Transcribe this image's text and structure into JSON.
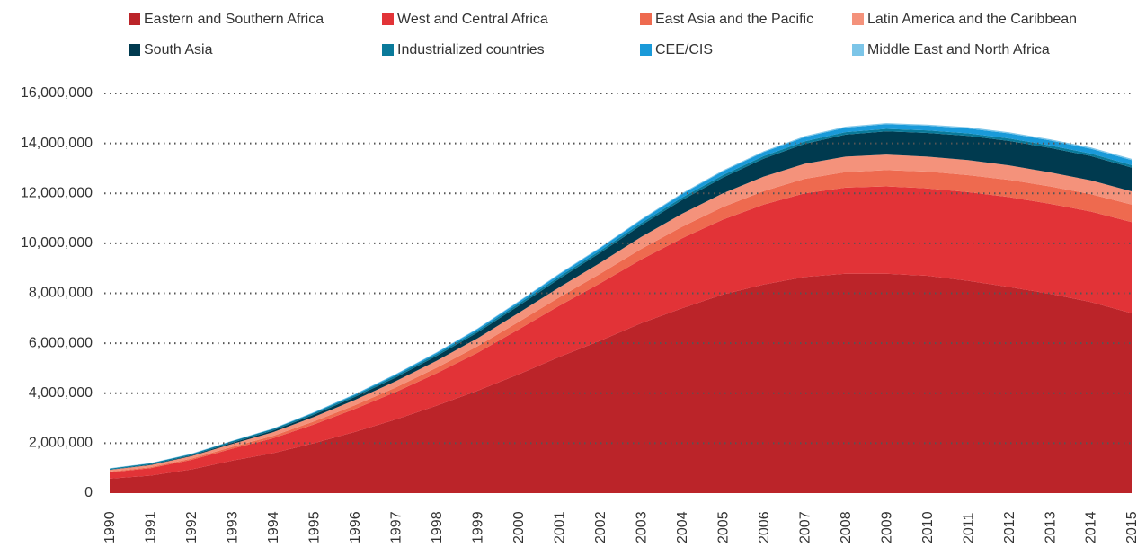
{
  "chart_data": {
    "type": "stacked_area",
    "x": [
      1990,
      1991,
      1992,
      1993,
      1994,
      1995,
      1996,
      1997,
      1998,
      1999,
      2000,
      2001,
      2002,
      2003,
      2004,
      2005,
      2006,
      2007,
      2008,
      2009,
      2010,
      2011,
      2012,
      2013,
      2014,
      2015
    ],
    "ylim": [
      0,
      16000000
    ],
    "yticks": [
      0,
      {
        "value": 2000000,
        "label": "2,000,000"
      },
      {
        "value": 4000000,
        "label": "4,000,000"
      },
      {
        "value": 6000000,
        "label": "6,000,000"
      },
      {
        "value": 8000000,
        "label": "8,000,000"
      },
      {
        "value": 10000000,
        "label": "10,000,000"
      },
      {
        "value": 12000000,
        "label": "12,000,000"
      },
      {
        "value": 14000000,
        "label": "14,000,000"
      },
      {
        "value": 16000000,
        "label": "16,000,000"
      }
    ],
    "grid": true,
    "legend": "top",
    "series": [
      {
        "name": "Eastern and Southern Africa",
        "color": "#bb2429",
        "values": [
          580000,
          700000,
          950000,
          1300000,
          1600000,
          2000000,
          2450000,
          2950000,
          3500000,
          4100000,
          4750000,
          5450000,
          6100000,
          6800000,
          7400000,
          7950000,
          8350000,
          8650000,
          8780000,
          8780000,
          8700000,
          8500000,
          8250000,
          7980000,
          7650000,
          7200000
        ]
      },
      {
        "name": "West and Central Africa",
        "color": "#e23337",
        "values": [
          250000,
          300000,
          380000,
          480000,
          600000,
          750000,
          920000,
          1100000,
          1300000,
          1520000,
          1800000,
          2050000,
          2300000,
          2550000,
          2800000,
          3000000,
          3200000,
          3350000,
          3450000,
          3500000,
          3500000,
          3550000,
          3600000,
          3600000,
          3620000,
          3650000
        ]
      },
      {
        "name": "East Asia and the Pacific",
        "color": "#ee6a4f",
        "values": [
          30000,
          40000,
          50000,
          70000,
          90000,
          120000,
          150000,
          180000,
          220000,
          260000,
          300000,
          340000,
          380000,
          420000,
          460000,
          500000,
          540000,
          580000,
          620000,
          650000,
          670000,
          680000,
          690000,
          700000,
          700000,
          700000
        ]
      },
      {
        "name": "Latin America and the Caribbean",
        "color": "#f4927b",
        "values": [
          70000,
          80000,
          100000,
          120000,
          150000,
          180000,
          210000,
          250000,
          280000,
          320000,
          360000,
          400000,
          440000,
          480000,
          520000,
          550000,
          580000,
          600000,
          620000,
          620000,
          600000,
          600000,
          580000,
          560000,
          550000,
          530000
        ]
      },
      {
        "name": "South Asia",
        "color": "#003a4f",
        "values": [
          10000,
          20000,
          30000,
          50000,
          70000,
          90000,
          120000,
          150000,
          190000,
          230000,
          280000,
          340000,
          400000,
          470000,
          550000,
          630000,
          720000,
          800000,
          880000,
          930000,
          950000,
          970000,
          980000,
          980000,
          970000,
          950000
        ]
      },
      {
        "name": "Industrialized countries",
        "color": "#0a7a9a",
        "values": [
          40000,
          50000,
          50000,
          60000,
          60000,
          70000,
          70000,
          80000,
          80000,
          80000,
          90000,
          90000,
          90000,
          90000,
          100000,
          100000,
          100000,
          100000,
          100000,
          100000,
          100000,
          100000,
          100000,
          100000,
          100000,
          100000
        ]
      },
      {
        "name": "CEE/CIS",
        "color": "#1a9ad9",
        "values": [
          5000,
          5000,
          10000,
          10000,
          10000,
          20000,
          30000,
          40000,
          50000,
          60000,
          70000,
          90000,
          100000,
          120000,
          140000,
          150000,
          160000,
          170000,
          180000,
          190000,
          190000,
          200000,
          200000,
          200000,
          200000,
          200000
        ]
      },
      {
        "name": "Middle East and North Africa",
        "color": "#7cc5e8",
        "values": [
          10000,
          10000,
          10000,
          10000,
          15000,
          15000,
          20000,
          20000,
          20000,
          25000,
          25000,
          30000,
          30000,
          30000,
          35000,
          35000,
          35000,
          40000,
          40000,
          40000,
          40000,
          45000,
          45000,
          45000,
          50000,
          50000
        ]
      }
    ]
  }
}
